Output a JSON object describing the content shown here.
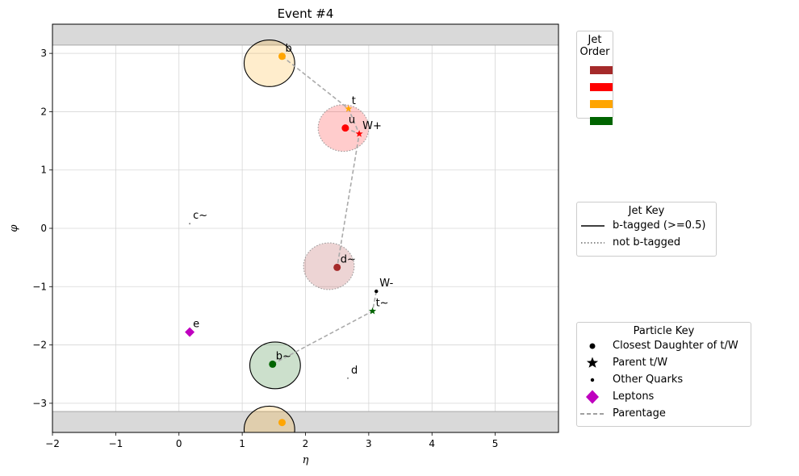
{
  "chart_data": {
    "type": "scatter",
    "title": "Event #4",
    "xlabel": "η",
    "ylabel": "φ",
    "xlim": [
      -2,
      6
    ],
    "ylim": [
      -3.5,
      3.5
    ],
    "xticks": [
      -2,
      -1,
      0,
      1,
      2,
      3,
      4,
      5
    ],
    "yticks": [
      -3,
      -2,
      -1,
      0,
      1,
      2,
      3
    ],
    "grid": true,
    "shaded_phi_bands": [
      [
        3.1416,
        3.5
      ],
      [
        -3.5,
        -3.1416
      ]
    ],
    "jets": [
      {
        "eta": 1.43,
        "phi": 2.83,
        "color": "#FFA500",
        "btagged": true
      },
      {
        "eta": 1.43,
        "phi": -3.45,
        "color": "#FFA500",
        "btagged": true
      },
      {
        "eta": 2.6,
        "phi": 1.72,
        "color": "#FF0000",
        "btagged": false
      },
      {
        "eta": 2.37,
        "phi": -0.65,
        "color": "#A52A2A",
        "btagged": false
      },
      {
        "eta": 1.52,
        "phi": -2.35,
        "color": "#006400",
        "btagged": true
      }
    ],
    "particles": [
      {
        "label": "b",
        "eta": 1.63,
        "phi": 2.95,
        "kind": "daughter",
        "color": "#FFA500"
      },
      {
        "label": "",
        "eta": 1.63,
        "phi": -3.33,
        "kind": "daughter",
        "color": "#FFA500"
      },
      {
        "label": "t",
        "eta": 2.68,
        "phi": 2.05,
        "kind": "parent",
        "color": "#FFA500"
      },
      {
        "label": "u",
        "eta": 2.63,
        "phi": 1.72,
        "kind": "daughter",
        "color": "#FF0000"
      },
      {
        "label": "W+",
        "eta": 2.85,
        "phi": 1.62,
        "kind": "parent",
        "color": "#FF0000"
      },
      {
        "label": "d~",
        "eta": 2.5,
        "phi": -0.67,
        "kind": "daughter",
        "color": "#A52A2A"
      },
      {
        "label": "W-",
        "eta": 3.12,
        "phi": -1.08,
        "kind": "quark",
        "color": "#000000"
      },
      {
        "label": "t~",
        "eta": 3.06,
        "phi": -1.42,
        "kind": "parent",
        "color": "#006400"
      },
      {
        "label": "b~",
        "eta": 1.48,
        "phi": -2.33,
        "kind": "daughter",
        "color": "#006400"
      },
      {
        "label": "c~",
        "eta": 0.17,
        "phi": 0.08,
        "kind": "tiny",
        "color": "#808080"
      },
      {
        "label": "d",
        "eta": 2.67,
        "phi": -2.57,
        "kind": "tiny",
        "color": "#808080"
      },
      {
        "label": "e",
        "eta": 0.17,
        "phi": -1.78,
        "kind": "lepton",
        "color": "#BF00BF"
      }
    ],
    "parentage": [
      [
        [
          1.63,
          2.95
        ],
        [
          2.68,
          2.05
        ],
        [
          2.85,
          1.62
        ],
        [
          2.5,
          -0.67
        ]
      ],
      [
        [
          2.63,
          1.72
        ],
        [
          2.85,
          1.62
        ]
      ],
      [
        [
          3.12,
          -1.08
        ],
        [
          3.06,
          -1.42
        ],
        [
          1.48,
          -2.33
        ]
      ]
    ]
  },
  "legends": {
    "jet_order": {
      "title": "Jet Order",
      "colors": [
        "#A52A2A",
        "#FF0000",
        "#FFA500",
        "#006400"
      ]
    },
    "jet_key": {
      "title": "Jet Key",
      "items": [
        {
          "label": "b-tagged (>=0.5)",
          "style": "solid"
        },
        {
          "label": "not b-tagged",
          "style": "dotted"
        }
      ]
    },
    "particle_key": {
      "title": "Particle Key",
      "items": [
        {
          "label": "Closest Daughter of t/W",
          "marker": "circle"
        },
        {
          "label": "Parent t/W",
          "marker": "star"
        },
        {
          "label": "Other Quarks",
          "marker": "dot"
        },
        {
          "label": "Leptons",
          "marker": "diamond"
        },
        {
          "label": "Parentage",
          "marker": "dash"
        }
      ]
    }
  }
}
